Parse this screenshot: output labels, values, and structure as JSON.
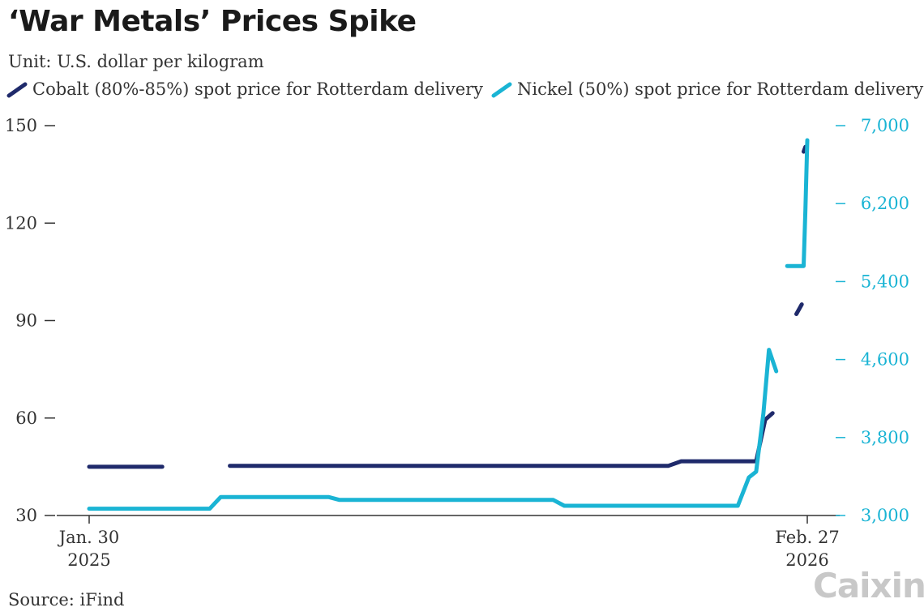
{
  "title": "‘War Metals’ Prices Spike",
  "subtitle": "Unit: U.S. dollar per kilogram",
  "source": "Source: iFind",
  "logo": "Caixin",
  "colors": {
    "cobalt": "#1f2a6b",
    "nickel": "#1ab4d4",
    "axis": "#333333",
    "right_axis": "#1ab4d4"
  },
  "chart_data": {
    "type": "line",
    "title": "‘War Metals’ Prices Spike",
    "ylabel": "U.S. dollar per kilogram",
    "x_range": [
      "2025-01-30",
      "2026-02-27"
    ],
    "x_tick_labels": [
      {
        "date": "2025-01-30",
        "line1": "Jan. 30",
        "line2": "2025"
      },
      {
        "date": "2026-02-27",
        "line1": "Feb. 27",
        "line2": "2026"
      }
    ],
    "y_left": {
      "range": [
        30,
        150
      ],
      "ticks": [
        30,
        60,
        90,
        120,
        150
      ],
      "tick_labels": [
        "30",
        "60",
        "90",
        "120",
        "150"
      ]
    },
    "y_right": {
      "range": [
        3000,
        7000
      ],
      "ticks": [
        3000,
        3800,
        4600,
        5400,
        6200,
        7000
      ],
      "tick_labels": [
        "3,000",
        "3,800",
        "4,600",
        "5,400",
        "6,200",
        "7,000"
      ]
    },
    "series": [
      {
        "name": "Cobalt (80%-85%) spot price for Rotterdam delivery",
        "axis": "left",
        "segments": [
          [
            [
              "2025-01-30",
              45
            ],
            [
              "2025-03-11",
              45
            ]
          ],
          [
            [
              "2025-04-17",
              45.3
            ],
            [
              "2025-12-13",
              45.3
            ],
            [
              "2025-12-20",
              46.7
            ],
            [
              "2026-01-30",
              46.7
            ],
            [
              "2026-02-04",
              59.5
            ],
            [
              "2026-02-08",
              61.5
            ]
          ],
          [
            [
              "2026-02-21",
              92
            ],
            [
              "2026-02-24",
              95
            ]
          ],
          [
            [
              "2026-02-25",
              142
            ],
            [
              "2026-02-26",
              143.5
            ]
          ]
        ]
      },
      {
        "name": "Nickel (50%) spot price for Rotterdam delivery",
        "axis": "right",
        "segments": [
          [
            [
              "2025-01-30",
              3070
            ],
            [
              "2025-04-06",
              3070
            ],
            [
              "2025-04-12",
              3190
            ],
            [
              "2025-06-10",
              3190
            ],
            [
              "2025-06-16",
              3160
            ],
            [
              "2025-10-11",
              3160
            ],
            [
              "2025-10-17",
              3100
            ],
            [
              "2026-01-20",
              3100
            ],
            [
              "2026-01-26",
              3390
            ],
            [
              "2026-01-30",
              3450
            ],
            [
              "2026-02-01",
              3750
            ],
            [
              "2026-02-03",
              4050
            ],
            [
              "2026-02-06",
              4700
            ],
            [
              "2026-02-10",
              4480
            ]
          ],
          [
            [
              "2026-02-16",
              5560
            ],
            [
              "2026-02-25",
              5560
            ],
            [
              "2026-02-26",
              6140
            ],
            [
              "2026-02-27",
              6850
            ]
          ]
        ]
      }
    ],
    "legend": "top-left"
  }
}
